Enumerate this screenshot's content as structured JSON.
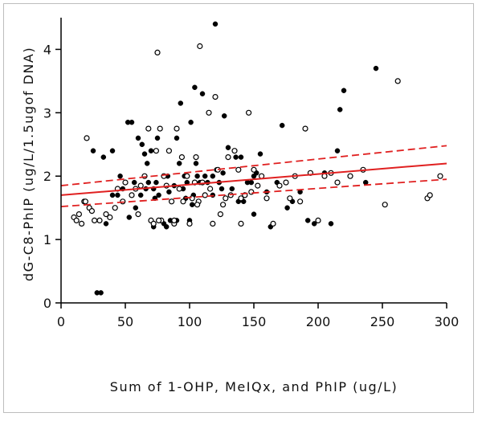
{
  "chart_data": {
    "type": "scatter",
    "title": "",
    "xlabel": "Sum of 1-OHP, MeIQx, and PhIP (ug/L)",
    "ylabel": "dG-C8-PhIP (ug/L/1.5ugof DNA)",
    "xlim": [
      0,
      300
    ],
    "ylim": [
      0,
      4.5
    ],
    "x_ticks": [
      "0",
      "50",
      "100",
      "150",
      "200",
      "250",
      "300"
    ],
    "y_ticks": [
      "0",
      "1",
      "2",
      "3",
      "4"
    ],
    "grid": false,
    "colors": {
      "points": "#000000",
      "fit": "#e02020",
      "axis": "#000000"
    },
    "series": [
      {
        "name": "filled",
        "marker": "filled-circle",
        "x": [
          28,
          31,
          25,
          33,
          40,
          46,
          48,
          52,
          55,
          57,
          60,
          62,
          63,
          65,
          67,
          68,
          70,
          72,
          72,
          74,
          75,
          76,
          78,
          80,
          82,
          83,
          85,
          86,
          88,
          90,
          90,
          92,
          93,
          95,
          96,
          98,
          100,
          101,
          103,
          104,
          105,
          106,
          108,
          110,
          112,
          114,
          116,
          118,
          120,
          121,
          123,
          125,
          127,
          130,
          133,
          136,
          138,
          140,
          142,
          145,
          148,
          150,
          152,
          155,
          160,
          163,
          168,
          172,
          176,
          180,
          186,
          192,
          197,
          205,
          210,
          215,
          217,
          220,
          237,
          245,
          40,
          58,
          53,
          35,
          66,
          84,
          97,
          112,
          126,
          150,
          44,
          88,
          102,
          118,
          73
        ],
        "y": [
          0.16,
          0.16,
          2.4,
          2.3,
          1.7,
          2.0,
          1.8,
          2.85,
          2.85,
          1.9,
          2.6,
          1.7,
          2.5,
          2.35,
          2.2,
          1.9,
          2.4,
          1.8,
          1.2,
          1.9,
          2.6,
          1.7,
          1.3,
          1.25,
          1.2,
          2.0,
          1.3,
          1.6,
          1.25,
          2.6,
          1.3,
          2.2,
          3.15,
          1.8,
          2.0,
          1.9,
          1.3,
          2.85,
          1.7,
          3.4,
          2.2,
          2.0,
          1.9,
          3.3,
          2.0,
          1.9,
          1.8,
          1.7,
          4.4,
          2.1,
          1.9,
          1.8,
          2.95,
          2.45,
          1.8,
          2.3,
          1.6,
          2.3,
          1.6,
          1.9,
          1.9,
          2.0,
          2.05,
          2.35,
          1.75,
          1.2,
          1.9,
          2.8,
          1.5,
          1.6,
          1.75,
          1.3,
          1.25,
          2.05,
          1.25,
          2.4,
          3.05,
          3.35,
          1.9,
          3.7,
          2.4,
          1.5,
          1.35,
          1.25,
          1.8,
          1.75,
          1.65,
          1.7,
          2.05,
          1.4,
          1.7,
          1.85,
          1.55,
          2.0,
          1.65
        ]
      },
      {
        "name": "open",
        "marker": "open-circle",
        "x": [
          10,
          12,
          14,
          16,
          18,
          20,
          22,
          24,
          26,
          30,
          35,
          38,
          42,
          44,
          48,
          50,
          55,
          58,
          60,
          62,
          65,
          68,
          70,
          72,
          74,
          75,
          77,
          78,
          80,
          82,
          84,
          86,
          88,
          90,
          92,
          94,
          95,
          98,
          100,
          102,
          104,
          105,
          107,
          108,
          110,
          112,
          115,
          118,
          120,
          122,
          124,
          126,
          128,
          130,
          132,
          135,
          138,
          140,
          143,
          146,
          148,
          150,
          153,
          156,
          160,
          165,
          170,
          175,
          178,
          182,
          186,
          190,
          194,
          200,
          205,
          210,
          215,
          225,
          235,
          252,
          262,
          285,
          287,
          295,
          19,
          76,
          116,
          106,
          88,
          140
        ],
        "y": [
          1.35,
          1.3,
          1.4,
          1.25,
          1.6,
          2.6,
          1.5,
          1.45,
          1.3,
          1.3,
          1.4,
          1.35,
          1.5,
          1.8,
          1.6,
          1.9,
          1.7,
          1.8,
          1.4,
          1.85,
          2.0,
          2.75,
          1.3,
          1.25,
          2.4,
          3.95,
          2.75,
          1.3,
          2.0,
          1.85,
          2.4,
          1.6,
          1.25,
          2.75,
          1.8,
          2.3,
          1.6,
          2.0,
          1.25,
          1.65,
          1.9,
          2.3,
          1.6,
          4.05,
          1.9,
          1.7,
          3.0,
          1.25,
          3.25,
          2.1,
          1.4,
          1.55,
          1.65,
          2.3,
          1.7,
          2.4,
          2.1,
          1.25,
          1.7,
          3.0,
          1.75,
          2.1,
          1.85,
          2.0,
          1.65,
          1.25,
          1.85,
          1.9,
          1.65,
          2.0,
          1.6,
          2.75,
          2.05,
          1.3,
          2.0,
          2.05,
          1.9,
          2.0,
          2.1,
          1.55,
          3.5,
          1.65,
          1.7,
          2.0,
          1.6,
          1.3,
          1.8,
          1.55,
          1.3,
          1.65
        ]
      }
    ],
    "fit": {
      "x_range": [
        0,
        300
      ],
      "line": [
        1.7,
        2.2
      ],
      "upper_ci": [
        1.85,
        2.48
      ],
      "lower_ci": [
        1.52,
        1.95
      ]
    }
  }
}
